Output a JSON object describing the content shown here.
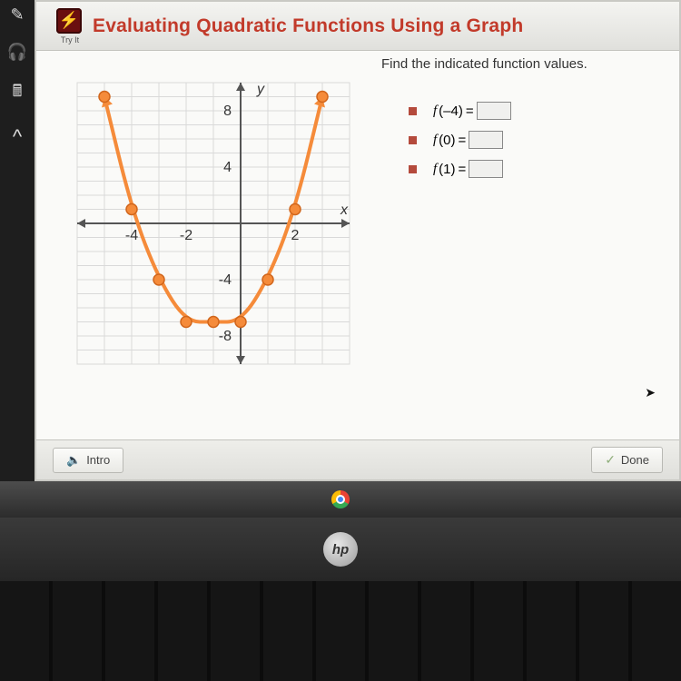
{
  "header": {
    "title": "Evaluating Quadratic Functions Using a Graph",
    "tryit_label": "Try It"
  },
  "content": {
    "instruction": "Find the indicated function values.",
    "questions": [
      {
        "prefix": "f",
        "arg": "(–4)",
        "eq": "="
      },
      {
        "prefix": "f",
        "arg": "(0)",
        "eq": "="
      },
      {
        "prefix": "f",
        "arg": "(1)",
        "eq": "="
      }
    ]
  },
  "footer": {
    "intro": "Intro",
    "done": "Done"
  },
  "chart": {
    "type": "scatter+line",
    "background_color": "#fafaf8",
    "grid_color": "#d9d9d9",
    "axis_color": "#555555",
    "curve_color": "#f58b3a",
    "curve_width": 4,
    "point_fill": "#f58b3a",
    "point_stroke": "#d1661c",
    "point_radius": 6,
    "label_color": "#333333",
    "label_fontsize": 16,
    "xlim": [
      -6,
      4
    ],
    "ylim": [
      -10,
      10
    ],
    "xtick_step": 2,
    "ytick_step": 4,
    "xtick_labels": {
      "-4": "-4",
      "-2": "-2",
      "2": "2"
    },
    "ytick_labels": {
      "8": "8",
      "4": "4",
      "-4": "-4",
      "-8": "-8"
    },
    "axis_labels": {
      "x": "x",
      "y": "y"
    },
    "points": [
      {
        "x": -5,
        "y": 9
      },
      {
        "x": -4,
        "y": 1
      },
      {
        "x": -3,
        "y": -4
      },
      {
        "x": -2,
        "y": -7
      },
      {
        "x": -1,
        "y": -7
      },
      {
        "x": 0,
        "y": -7
      },
      {
        "x": 1,
        "y": -4
      },
      {
        "x": 2,
        "y": 1
      },
      {
        "x": 3,
        "y": 9
      }
    ]
  },
  "rail_icons": [
    "pencil",
    "headphones",
    "calculator",
    "caret-up"
  ]
}
